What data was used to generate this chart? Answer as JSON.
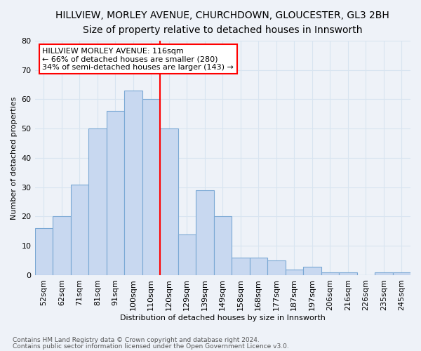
{
  "title": "HILLVIEW, MORLEY AVENUE, CHURCHDOWN, GLOUCESTER, GL3 2BH",
  "subtitle": "Size of property relative to detached houses in Innsworth",
  "xlabel": "Distribution of detached houses by size in Innsworth",
  "ylabel": "Number of detached properties",
  "footnote1": "Contains HM Land Registry data © Crown copyright and database right 2024.",
  "footnote2": "Contains public sector information licensed under the Open Government Licence v3.0.",
  "bar_labels": [
    "52sqm",
    "62sqm",
    "71sqm",
    "81sqm",
    "91sqm",
    "100sqm",
    "110sqm",
    "120sqm",
    "129sqm",
    "139sqm",
    "149sqm",
    "158sqm",
    "168sqm",
    "177sqm",
    "187sqm",
    "197sqm",
    "206sqm",
    "216sqm",
    "226sqm",
    "235sqm",
    "245sqm"
  ],
  "bar_values": [
    16,
    20,
    31,
    50,
    56,
    63,
    60,
    50,
    14,
    29,
    20,
    6,
    6,
    5,
    2,
    3,
    1,
    1,
    0,
    1,
    1
  ],
  "bar_color": "#c8d8f0",
  "bar_edge_color": "#7aa8d4",
  "vline_x": 6.5,
  "vline_color": "red",
  "ylim": [
    0,
    80
  ],
  "yticks": [
    0,
    10,
    20,
    30,
    40,
    50,
    60,
    70,
    80
  ],
  "annotation_title": "HILLVIEW MORLEY AVENUE: 116sqm",
  "annotation_line1": "← 66% of detached houses are smaller (280)",
  "annotation_line2": "34% of semi-detached houses are larger (143) →",
  "annotation_box_color": "white",
  "annotation_box_edge": "red",
  "grid_color": "#d8e4f0",
  "background_color": "#eef2f8",
  "title_fontsize": 10,
  "subtitle_fontsize": 9,
  "annotation_fontsize": 8,
  "axis_label_fontsize": 8,
  "tick_fontsize": 8
}
